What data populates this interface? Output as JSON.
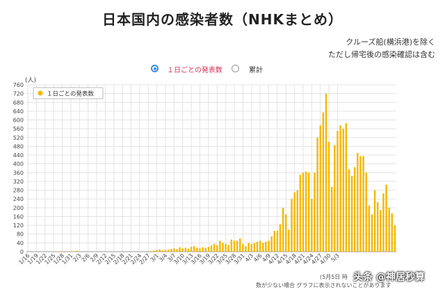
{
  "page": {
    "title": "日本国内の感染者数（NHKまとめ）",
    "note_line1": "クルーズ船(横浜港)を除く",
    "note_line2": "ただし帰宅後の感染確認は含む",
    "radio_daily": "１日ごとの発表数",
    "radio_total": "累計",
    "footer_date": "(5月5日 時",
    "footer_note": "数が少ない場合 グラフに表示されないことがあります",
    "watermark": "头条 @神居秒算"
  },
  "colors": {
    "bar": "#f5b800",
    "grid": "#e3e3e3",
    "radio_active": "#3a8ee6",
    "accent_label": "#d6335a"
  },
  "chart_data": {
    "type": "bar",
    "ylabel": "(人)",
    "ylim": [
      0,
      760
    ],
    "yticks": [
      0,
      40,
      80,
      120,
      160,
      200,
      240,
      280,
      320,
      360,
      400,
      440,
      480,
      520,
      560,
      600,
      640,
      680,
      720,
      760
    ],
    "legend": "１日ごとの発表数",
    "legend_position": "top-left",
    "grid": true,
    "xtick_labels": [
      "1/16",
      "1/19",
      "1/22",
      "1/25",
      "1/28",
      "1/31",
      "2/3",
      "2/6",
      "2/9",
      "2/12",
      "2/15",
      "2/18",
      "2/21",
      "2/24",
      "2/27",
      "3/1",
      "3/4",
      "3/7",
      "3/10",
      "3/13",
      "3/16",
      "3/19",
      "3/22",
      "3/25",
      "3/28",
      "3/31",
      "4/3",
      "4/6",
      "4/9",
      "4/12",
      "4/15",
      "4/18",
      "4/21",
      "4/24",
      "4/27",
      "4/30",
      "5/3"
    ],
    "values": [
      1,
      0,
      0,
      0,
      0,
      0,
      0,
      0,
      0,
      0,
      1,
      2,
      1,
      0,
      1,
      0,
      1,
      4,
      0,
      0,
      0,
      0,
      0,
      0,
      0,
      0,
      0,
      0,
      0,
      0,
      0,
      0,
      0,
      0,
      0,
      0,
      0,
      0,
      0,
      0,
      0,
      0,
      0,
      3,
      5,
      8,
      10,
      6,
      8,
      10,
      12,
      15,
      12,
      20,
      15,
      18,
      14,
      22,
      25,
      18,
      15,
      20,
      18,
      22,
      28,
      35,
      30,
      50,
      40,
      35,
      30,
      55,
      50,
      50,
      60,
      35,
      25,
      40,
      35,
      40,
      45,
      50,
      40,
      45,
      50,
      70,
      95,
      95,
      125,
      200,
      170,
      100,
      240,
      270,
      280,
      350,
      360,
      365,
      360,
      240,
      360,
      520,
      575,
      635,
      720,
      500,
      295,
      485,
      550,
      575,
      560,
      585,
      375,
      345,
      385,
      450,
      435,
      435,
      360,
      210,
      170,
      280,
      225,
      190,
      265,
      305,
      200,
      175,
      120
    ]
  }
}
